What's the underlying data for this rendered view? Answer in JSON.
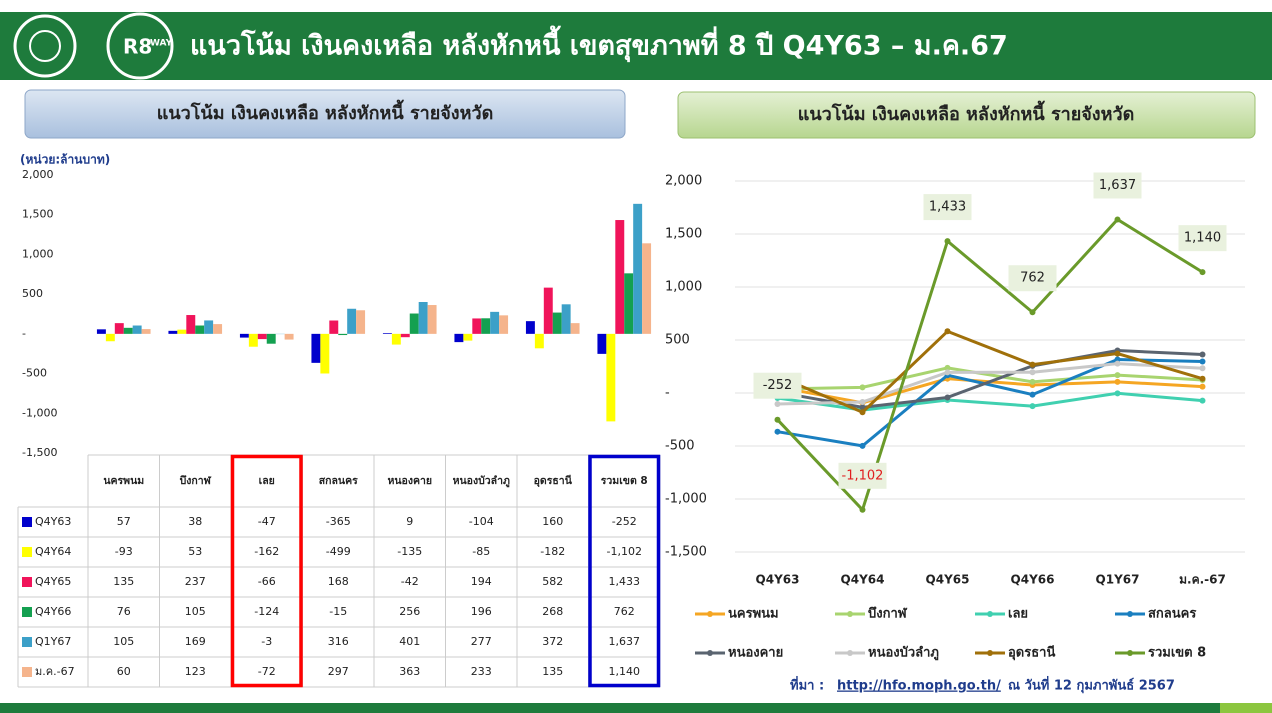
{
  "header": {
    "title": "แนวโน้ม เงินคงเหลือ หลังหักหนี้ เขตสุขภาพที่ 8 ปี Q4Y63 – ม.ค.67",
    "logo_text": "R8",
    "logo_sub": "WAY"
  },
  "chart_data": [
    {
      "type": "bar",
      "title": "แนวโน้ม เงินคงเหลือ หลังหักหนี้ รายจังหวัด",
      "unit_label": "(หน่วย:ล้านบาท)",
      "categories": [
        "นครพนม",
        "บึงกาฬ",
        "เลย",
        "สกลนคร",
        "หนองคาย",
        "หนองบัวลำภู",
        "อุดรธานี",
        "รวมเขต 8"
      ],
      "series": [
        {
          "name": "Q4Y63",
          "color": "#0000cc",
          "values": [
            57,
            38,
            -47,
            -365,
            9,
            -104,
            160,
            -252
          ],
          "value_labels": [
            "57",
            "38",
            "-47",
            "-365",
            "9",
            "-104",
            "160",
            "-252"
          ]
        },
        {
          "name": "Q4Y64",
          "color": "#ffff00",
          "values": [
            -93,
            53,
            -162,
            -499,
            -135,
            -85,
            -182,
            -1102
          ],
          "value_labels": [
            "-93",
            "53",
            "-162",
            "-499",
            "-135",
            "-85",
            "-182",
            "-1,102"
          ]
        },
        {
          "name": "Q4Y65",
          "color": "#f0145a",
          "values": [
            135,
            237,
            -66,
            168,
            -42,
            194,
            582,
            1433
          ],
          "value_labels": [
            "135",
            "237",
            "-66",
            "168",
            "-42",
            "194",
            "582",
            "1,433"
          ]
        },
        {
          "name": "Q4Y66",
          "color": "#14a050",
          "values": [
            76,
            105,
            -124,
            -15,
            256,
            196,
            268,
            762
          ],
          "value_labels": [
            "76",
            "105",
            "-124",
            "-15",
            "256",
            "196",
            "268",
            "762"
          ]
        },
        {
          "name": "Q1Y67",
          "color": "#3ca0c8",
          "values": [
            105,
            169,
            -3,
            316,
            401,
            277,
            372,
            1637
          ],
          "value_labels": [
            "105",
            "169",
            "-3",
            "316",
            "401",
            "277",
            "372",
            "1,637"
          ]
        },
        {
          "name": "ม.ค.-67",
          "color": "#f5b48c",
          "values": [
            60,
            123,
            -72,
            297,
            363,
            233,
            135,
            1140
          ],
          "value_labels": [
            "60",
            "123",
            "-72",
            "297",
            "363",
            "233",
            "135",
            "1,140"
          ]
        }
      ],
      "ylim": [
        -1500,
        2000
      ],
      "yticks": [
        {
          "value": -1500,
          "label": "-1,500"
        },
        {
          "value": -1000,
          "label": "-1,000"
        },
        -500,
        {
          "value": 0,
          "label": "-"
        },
        500,
        {
          "value": 1000,
          "label": "1,000"
        },
        {
          "value": 1500,
          "label": "1,500"
        },
        {
          "value": 2000,
          "label": "2,000"
        }
      ],
      "highlights": [
        {
          "index": 2,
          "color": "#ff0000"
        },
        {
          "index": 7,
          "color": "#0000cc"
        }
      ]
    },
    {
      "type": "line",
      "title": "แนวโน้ม เงินคงเหลือ หลังหักหนี้ รายจังหวัด",
      "categories": [
        "Q4Y63",
        "Q4Y64",
        "Q4Y65",
        "Q4Y66",
        "Q1Y67",
        "ม.ค.-67"
      ],
      "series": [
        {
          "name": "นครพนม",
          "color": "#f5a623",
          "values": [
            57,
            -93,
            135,
            76,
            105,
            60
          ]
        },
        {
          "name": "บึงกาฬ",
          "color": "#a8d46f",
          "values": [
            38,
            53,
            237,
            105,
            169,
            123
          ]
        },
        {
          "name": "เลย",
          "color": "#40d0b0",
          "values": [
            -47,
            -162,
            -66,
            -124,
            -3,
            -72
          ]
        },
        {
          "name": "สกลนคร",
          "color": "#1a7fc0",
          "values": [
            -365,
            -499,
            168,
            -15,
            316,
            297
          ]
        },
        {
          "name": "หนองคาย",
          "color": "#5a6470",
          "values": [
            9,
            -135,
            -42,
            256,
            401,
            363
          ]
        },
        {
          "name": "หนองบัวลำภู",
          "color": "#c8c8c8",
          "values": [
            -104,
            -85,
            194,
            196,
            277,
            233
          ]
        },
        {
          "name": "อุดรธานี",
          "color": "#a0700a",
          "values": [
            160,
            -182,
            582,
            268,
            372,
            135
          ]
        },
        {
          "name": "รวมเขต 8",
          "color": "#6a9a2a",
          "values": [
            -252,
            -1102,
            1433,
            762,
            1637,
            1140
          ],
          "value_labels": [
            "-252",
            "-1,102",
            "1,433",
            "762",
            "1,637",
            "1,140"
          ]
        }
      ],
      "ylim": [
        -1500,
        2000
      ],
      "yticks": [
        {
          "value": -1500,
          "label": "-1,500"
        },
        {
          "value": -1000,
          "label": "-1,000"
        },
        -500,
        {
          "value": 0,
          "label": "-"
        },
        500,
        {
          "value": 1000,
          "label": "1,000"
        },
        {
          "value": 1500,
          "label": "1,500"
        },
        {
          "value": 2000,
          "label": "2,000"
        }
      ],
      "grid": true,
      "legend_position": "bottom"
    }
  ],
  "footer": {
    "source_prefix": "ที่มา :",
    "source_url": "http://hfo.moph.go.th/",
    "source_date": "ณ วันที่ 12 กุมภาพันธ์ 2567"
  }
}
